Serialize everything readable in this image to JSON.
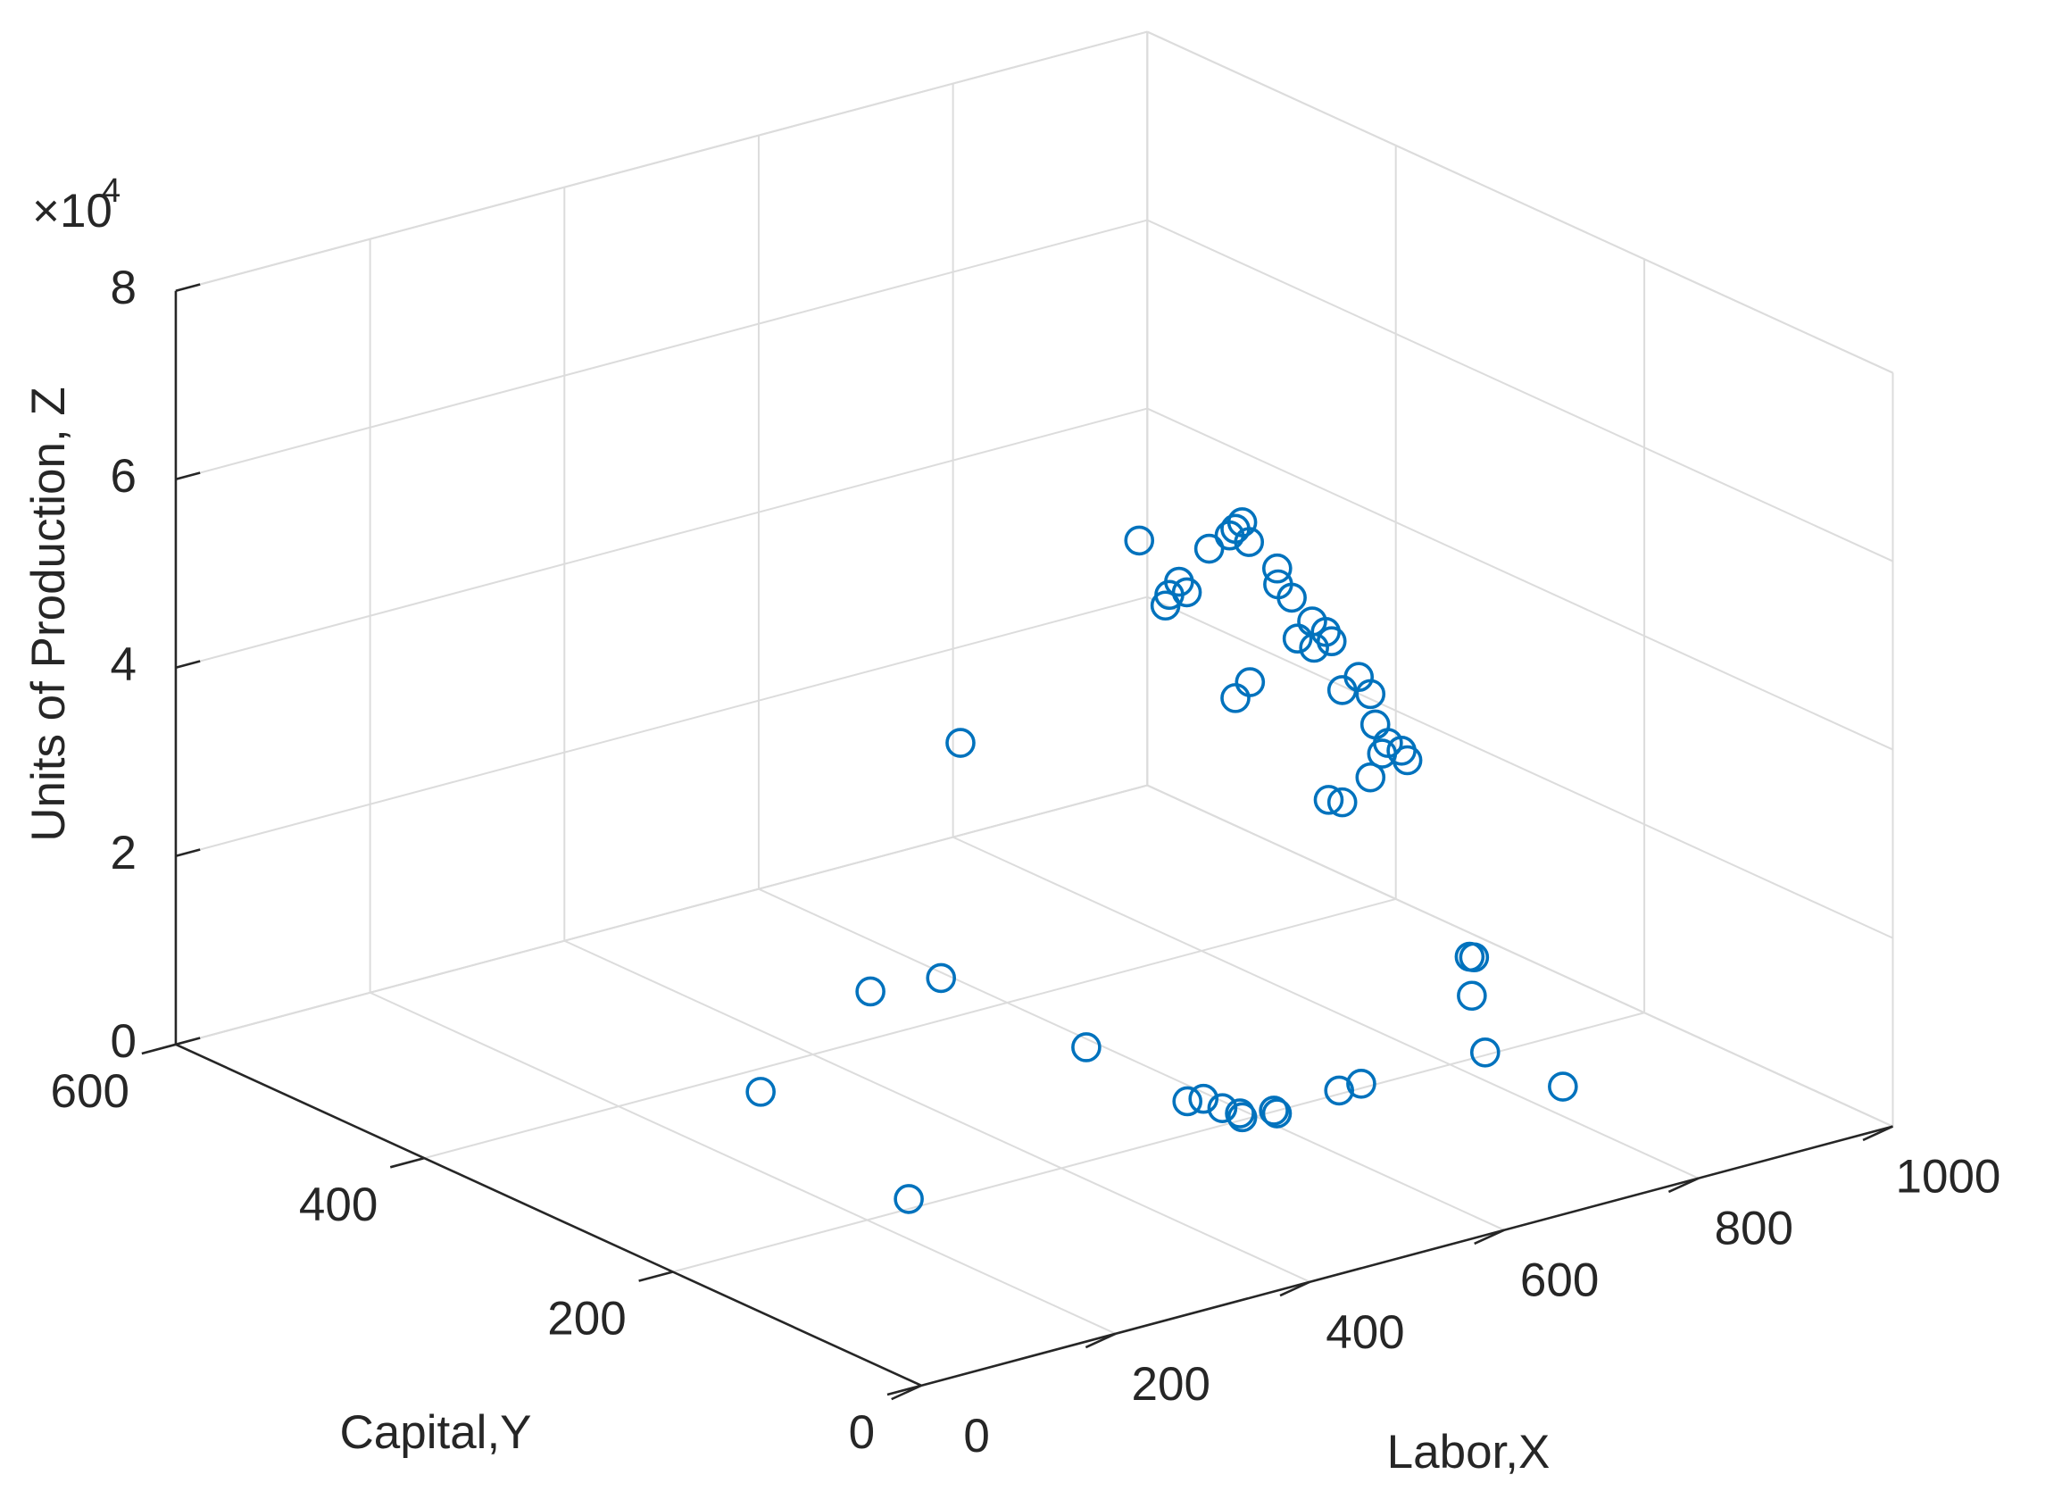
{
  "chart_data": {
    "type": "scatter3d",
    "xlabel": "Labor,X",
    "ylabel": "Capital,Y",
    "zlabel": "Units of Production, Z",
    "z_multiplier": {
      "base": "×10",
      "power": "4"
    },
    "xlim": [
      0,
      1000
    ],
    "xticks": [
      0,
      200,
      400,
      600,
      800,
      1000
    ],
    "ylim": [
      0,
      600
    ],
    "yticks": [
      0,
      200,
      400,
      600
    ],
    "zlim": [
      0,
      80000
    ],
    "zticks": [
      {
        "value": 0,
        "label": "0"
      },
      {
        "value": 20000,
        "label": "2"
      },
      {
        "value": 40000,
        "label": "4"
      },
      {
        "value": 60000,
        "label": "6"
      },
      {
        "value": 80000,
        "label": "8"
      }
    ],
    "grid": true,
    "color": "#0072bd",
    "x": [
      313,
      257,
      527,
      592,
      588,
      577,
      591,
      590,
      594,
      590,
      620,
      618,
      691,
      715,
      842,
      840,
      912,
      968,
      966,
      424,
      608,
      707,
      714,
      701,
      721,
      680,
      649,
      639,
      657,
      635,
      750,
      751,
      765,
      786,
      800,
      771,
      788,
      806,
      834,
      817,
      846,
      722,
      707,
      851,
      864,
      878,
      858,
      884,
      846,
      803,
      817
    ],
    "y": [
      374,
      211,
      453,
      447,
      327,
      237,
      235,
      219,
      208,
      203,
      201,
      197,
      204,
      205,
      142,
      203,
      270,
      312,
      314,
      300,
      300,
      300,
      300,
      300,
      300,
      300,
      300,
      300,
      300,
      300,
      300,
      300,
      300,
      300,
      300,
      300,
      300,
      300,
      300,
      300,
      300,
      300,
      300,
      300,
      300,
      300,
      300,
      300,
      300,
      300,
      300
    ],
    "z": [
      0,
      0,
      0,
      0,
      0,
      0,
      0,
      0,
      0,
      0,
      0,
      0,
      0,
      0,
      0,
      0,
      0,
      0,
      0,
      38456,
      54877,
      53390,
      53895,
      52856,
      51606,
      52028,
      49375,
      48253,
      48028,
      47228,
      48000,
      46288,
      44491,
      41390,
      39888,
      39986,
      38540,
      38737,
      34175,
      33249,
      32028,
      36702,
      35425,
      28660,
      26344,
      25137,
      25375,
      23958,
      23186,
      21979,
      21333
    ]
  }
}
